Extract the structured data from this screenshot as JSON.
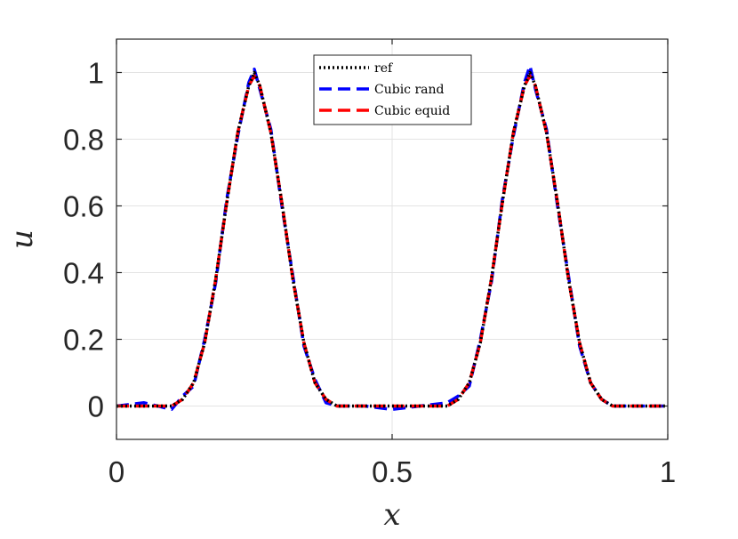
{
  "chart_data": {
    "type": "line",
    "xlabel": "x",
    "ylabel": "u",
    "xlim": [
      0,
      1
    ],
    "ylim": [
      -0.1,
      1.1
    ],
    "xticks": [
      0,
      0.5,
      1
    ],
    "xtick_labels": [
      "0",
      "0.5",
      "1"
    ],
    "yticks": [
      0,
      0.2,
      0.4,
      0.6,
      0.8,
      1
    ],
    "ytick_labels": [
      "0",
      "0.2",
      "0.4",
      "0.6",
      "0.8",
      "1"
    ],
    "grid": true,
    "legend_position": "top-center",
    "x": [
      0.0,
      0.05,
      0.1,
      0.12,
      0.14,
      0.16,
      0.18,
      0.2,
      0.22,
      0.24,
      0.25,
      0.26,
      0.28,
      0.3,
      0.32,
      0.34,
      0.36,
      0.38,
      0.4,
      0.45,
      0.5,
      0.55,
      0.6,
      0.62,
      0.64,
      0.66,
      0.68,
      0.7,
      0.72,
      0.74,
      0.75,
      0.76,
      0.78,
      0.8,
      0.82,
      0.84,
      0.86,
      0.88,
      0.9,
      0.95,
      1.0
    ],
    "series": [
      {
        "name": "ref",
        "color": "#000000",
        "dash": "dotted",
        "values": [
          0.0,
          0.0,
          0.0,
          0.02,
          0.07,
          0.19,
          0.38,
          0.61,
          0.82,
          0.96,
          1.0,
          0.96,
          0.82,
          0.61,
          0.38,
          0.19,
          0.07,
          0.02,
          0.0,
          0.0,
          0.0,
          0.0,
          0.0,
          0.02,
          0.07,
          0.19,
          0.38,
          0.61,
          0.82,
          0.96,
          1.0,
          0.96,
          0.82,
          0.61,
          0.38,
          0.19,
          0.07,
          0.02,
          0.0,
          0.0,
          0.0
        ]
      },
      {
        "name": "Cubic rand",
        "color": "#0000ff",
        "dash": "dashed",
        "values": [
          0.0,
          0.01,
          -0.01,
          0.03,
          0.06,
          0.2,
          0.37,
          0.62,
          0.81,
          0.97,
          1.01,
          0.95,
          0.83,
          0.6,
          0.39,
          0.18,
          0.08,
          0.01,
          0.0,
          0.0,
          -0.01,
          0.0,
          0.01,
          0.03,
          0.06,
          0.2,
          0.37,
          0.62,
          0.81,
          0.97,
          1.02,
          0.95,
          0.83,
          0.6,
          0.39,
          0.18,
          0.07,
          0.02,
          0.0,
          0.0,
          0.0
        ]
      },
      {
        "name": "Cubic equid",
        "color": "#ff0000",
        "dash": "dashed",
        "values": [
          0.0,
          0.0,
          0.0,
          0.02,
          0.07,
          0.19,
          0.38,
          0.61,
          0.82,
          0.96,
          0.99,
          0.96,
          0.82,
          0.61,
          0.38,
          0.19,
          0.07,
          0.02,
          0.0,
          0.0,
          0.0,
          0.0,
          0.0,
          0.02,
          0.07,
          0.19,
          0.38,
          0.61,
          0.82,
          0.96,
          0.99,
          0.96,
          0.82,
          0.61,
          0.38,
          0.19,
          0.07,
          0.02,
          0.0,
          0.0,
          0.0
        ]
      }
    ]
  }
}
